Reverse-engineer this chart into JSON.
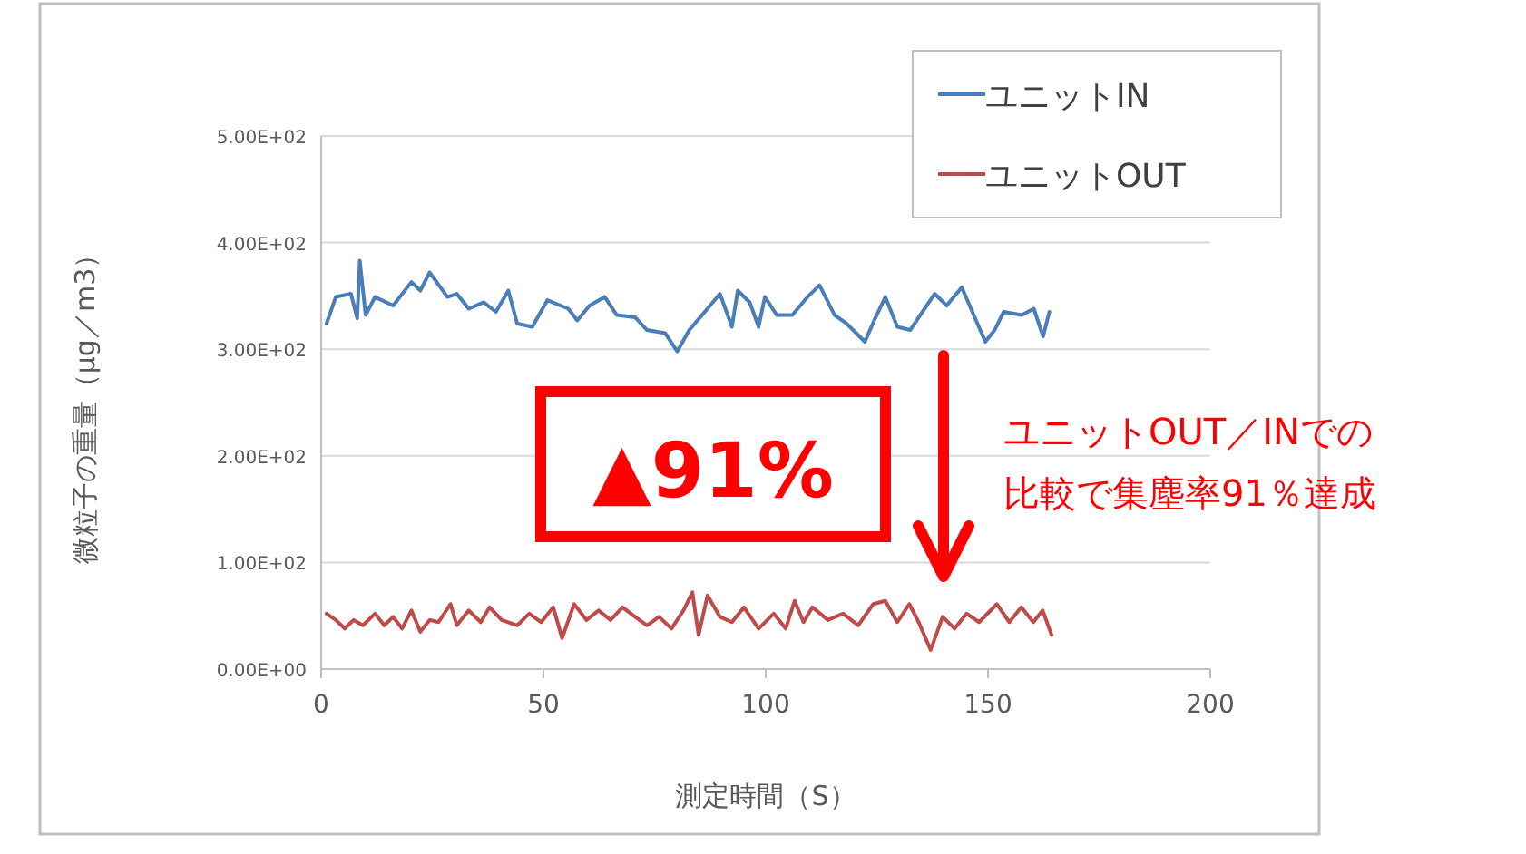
{
  "chart_data": {
    "type": "line",
    "xlabel": "測定時間（S）",
    "ylabel": "微粒子の重量（μg／m3）",
    "xlim": [
      0,
      200
    ],
    "xticks": [
      0,
      50,
      100,
      150,
      200
    ],
    "ylim": [
      0,
      500
    ],
    "yticks": [
      {
        "value": 0,
        "label": "0.00E+00"
      },
      {
        "value": 100,
        "label": "1.00E+02"
      },
      {
        "value": 200,
        "label": "2.00E+02"
      },
      {
        "value": 300,
        "label": "3.00E+02"
      },
      {
        "value": 400,
        "label": "4.00E+02"
      },
      {
        "value": 500,
        "label": "5.00E+02"
      }
    ],
    "grid": "y",
    "legend": "top right",
    "series": [
      {
        "name": "ユニットIN",
        "color": "#4a7ebb",
        "x": [
          1.2,
          3.3,
          6.7,
          8.1,
          8.7,
          10,
          12.1,
          16.2,
          20.3,
          22.3,
          24.4,
          28.4,
          30.5,
          33.2,
          36.6,
          39.3,
          42.1,
          44.1,
          47.5,
          50.9,
          55.6,
          57.6,
          60.4,
          63.8,
          66.5,
          70.6,
          73.3,
          77.4,
          80.1,
          82.8,
          86.9,
          89.7,
          92.4,
          93.7,
          96.4,
          98.4,
          99.8,
          102.5,
          106,
          109.4,
          112.1,
          115.5,
          118.2,
          122.3,
          124.4,
          126.9,
          129.6,
          132.5,
          138,
          140.7,
          144.1,
          146.8,
          149.4,
          151.5,
          153.5,
          157.6,
          160.3,
          162.4,
          163.8
        ],
        "values": [
          324,
          349,
          352,
          329,
          383,
          332,
          349,
          341,
          363,
          355,
          372,
          349,
          352,
          338,
          344,
          335,
          355,
          324,
          321,
          346,
          338,
          327,
          341,
          349,
          332,
          330,
          318,
          315,
          298,
          318,
          338,
          352,
          321,
          355,
          344,
          321,
          349,
          332,
          332,
          349,
          360,
          332,
          324,
          307,
          327,
          349,
          321,
          318,
          352,
          341,
          358,
          332,
          307,
          318,
          335,
          332,
          338,
          312,
          335
        ]
      },
      {
        "name": "ユニットOUT",
        "color": "#be4b48",
        "x": [
          1.2,
          3.3,
          5.3,
          7.3,
          9.4,
          12.1,
          14.2,
          16.2,
          18.2,
          20.3,
          22.3,
          24.4,
          26.4,
          29.1,
          30.5,
          33.2,
          35.9,
          37.9,
          40.6,
          44.1,
          46.8,
          49.5,
          52.2,
          54.2,
          56.9,
          59.7,
          62.4,
          65.1,
          67.8,
          70.6,
          73.3,
          76,
          78.8,
          81.5,
          83.5,
          84.9,
          86.9,
          89.7,
          92.4,
          95.1,
          98.4,
          101.8,
          104.5,
          106.5,
          108.5,
          110.5,
          114,
          117.4,
          120.8,
          124.2,
          126.9,
          129.6,
          132.3,
          134.4,
          137.1,
          139.8,
          142.5,
          145.2,
          148,
          152,
          154.8,
          157.5,
          160.2,
          162.3,
          164.3
        ],
        "values": [
          52,
          46,
          38,
          46,
          41,
          52,
          41,
          49,
          38,
          55,
          35,
          46,
          44,
          61,
          41,
          55,
          44,
          58,
          46,
          41,
          52,
          44,
          58,
          29,
          61,
          46,
          55,
          46,
          58,
          49,
          41,
          49,
          38,
          55,
          72,
          32,
          69,
          49,
          44,
          58,
          38,
          52,
          38,
          64,
          44,
          58,
          46,
          52,
          41,
          61,
          64,
          44,
          61,
          44,
          18,
          49,
          38,
          52,
          44,
          61,
          44,
          58,
          44,
          55,
          32
        ]
      }
    ],
    "annotations": [
      "▲91%",
      "ユニットOUT／INでの",
      "比較で集塵率91％達成"
    ]
  }
}
